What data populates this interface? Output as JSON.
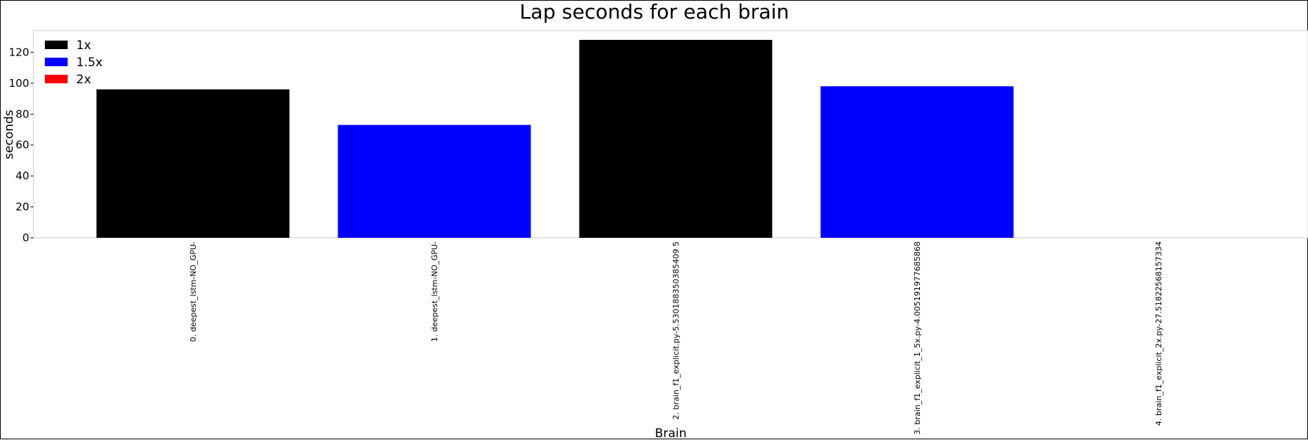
{
  "chart_data": {
    "type": "bar",
    "title": "Lap seconds for each brain",
    "xlabel": "Brain",
    "ylabel": "seconds",
    "ylim": [
      0,
      134
    ],
    "yticks": [
      0,
      20,
      40,
      60,
      80,
      100,
      120
    ],
    "grid": false,
    "legend_position": "top-left",
    "legend": [
      {
        "label": "1x",
        "color": "#000000"
      },
      {
        "label": "1.5x",
        "color": "#0000ff"
      },
      {
        "label": "2x",
        "color": "#ff0000"
      }
    ],
    "categories": [
      "0. deepest_lstm-NO_GPU-",
      "1. deepest_lstm-NO_GPU-",
      "2. brain_f1_explicit.py-5.530188350385409 5",
      "3. brain_f1_explicit_1_5x.py-4.005191977685868",
      "4. brain_f1_explicit_2x.py-27.51822568157334"
    ],
    "values": [
      96,
      73,
      128,
      98,
      0
    ],
    "colors": [
      "#000000",
      "#0000ff",
      "#000000",
      "#0000ff",
      "#ff0000"
    ]
  }
}
